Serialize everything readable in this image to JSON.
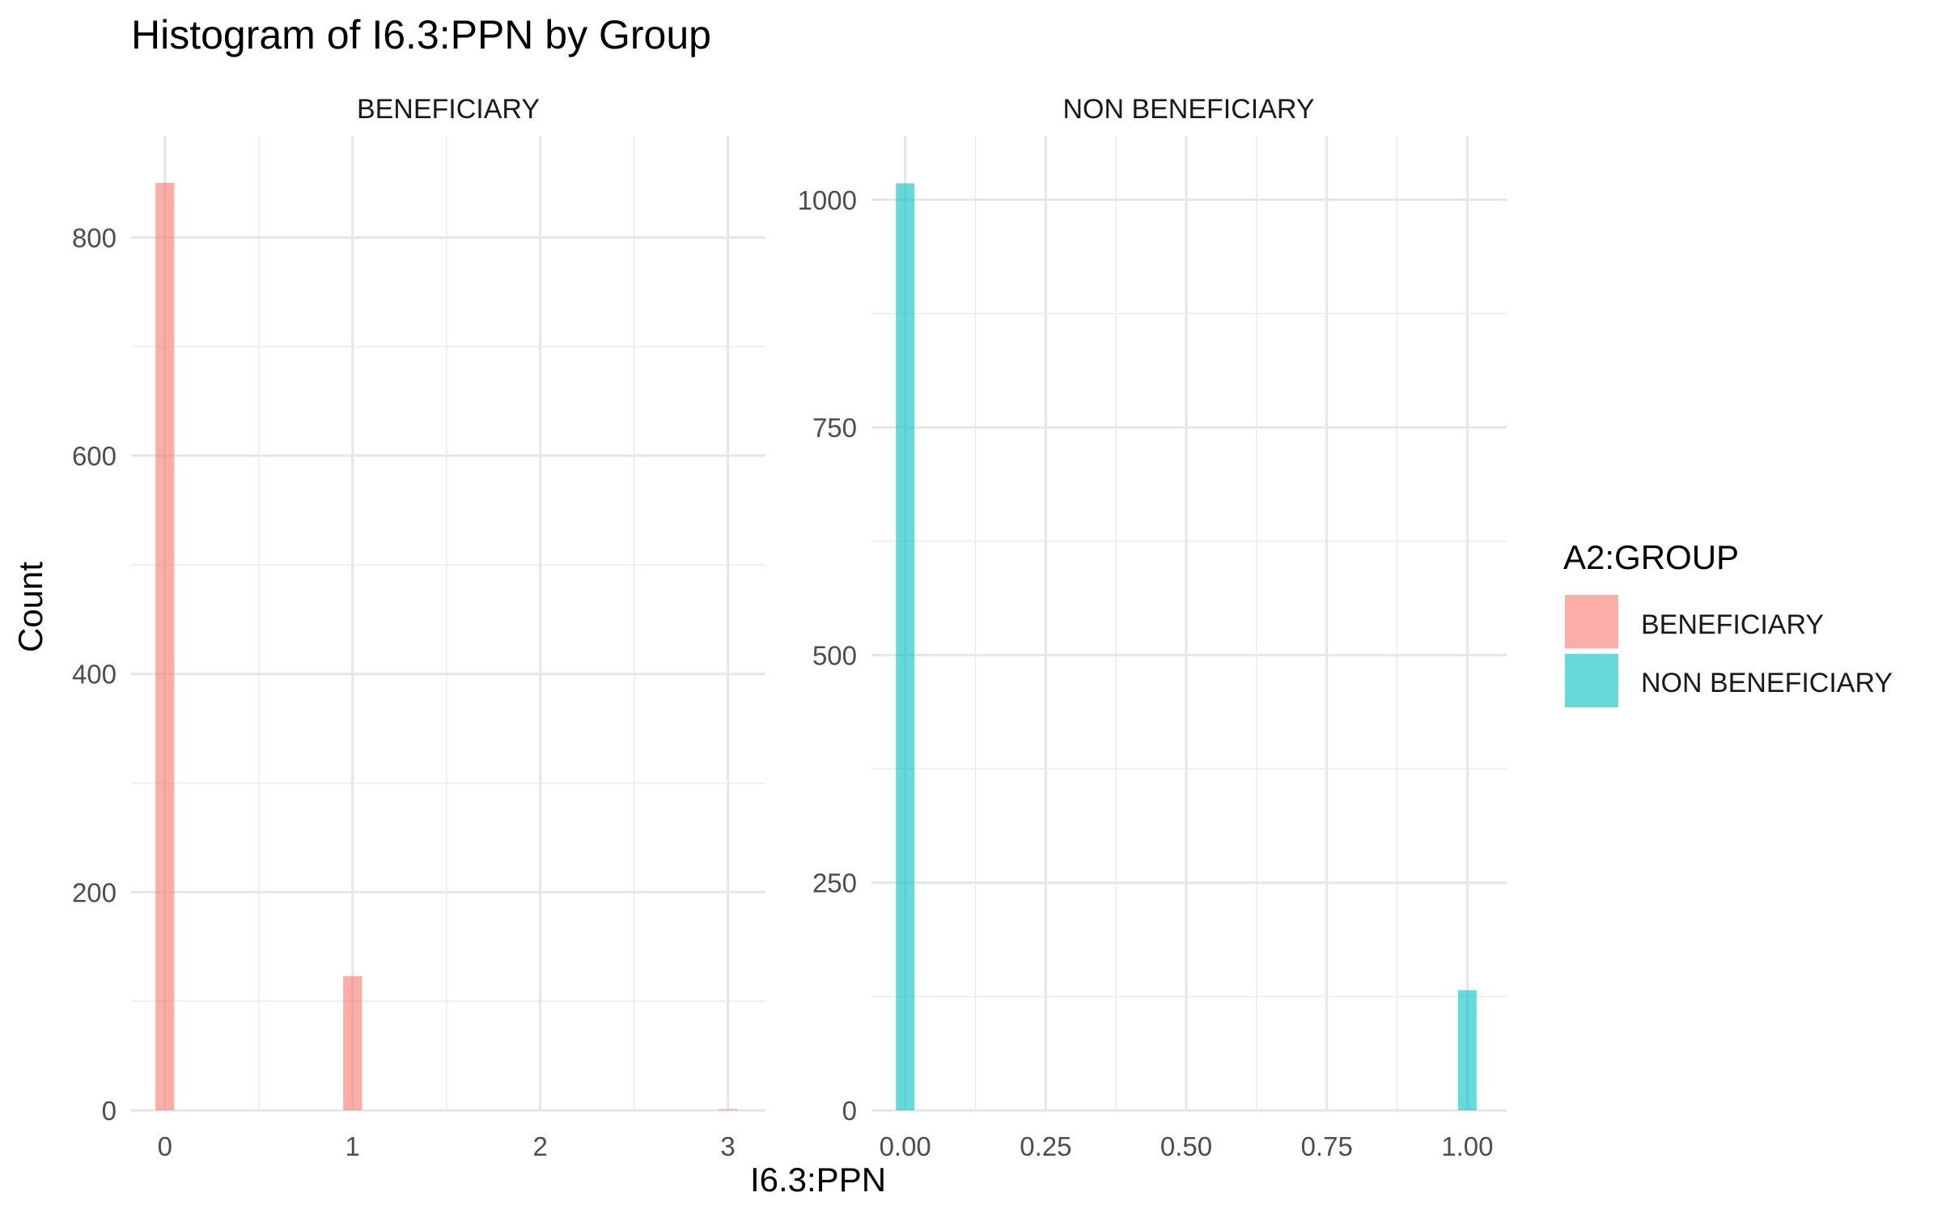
{
  "chart_data": {
    "type": "bar",
    "title": "Histogram of I6.3:PPN by Group",
    "xlabel": "I6.3:PPN",
    "ylabel": "Count",
    "grid": true,
    "legend": {
      "title": "A2:GROUP",
      "position": "right",
      "entries": [
        {
          "label": "BENEFICIARY",
          "color": "#F8766D"
        },
        {
          "label": "NON BENEFICIARY",
          "color": "#00BFC4"
        }
      ]
    },
    "facets": [
      {
        "strip_label": "BENEFICIARY",
        "color": "#F8766D",
        "xlim": [
          -0.18,
          3.2
        ],
        "ylim": [
          0,
          893
        ],
        "x_ticks": [
          0,
          1,
          2,
          3
        ],
        "x_tick_labels": [
          "0",
          "1",
          "2",
          "3"
        ],
        "y_ticks": [
          0,
          200,
          400,
          600,
          800
        ],
        "y_tick_labels": [
          "0",
          "200",
          "400",
          "600",
          "800"
        ],
        "bin_width": 0.1,
        "bins": [
          {
            "x": 0,
            "count": 850
          },
          {
            "x": 1,
            "count": 123
          },
          {
            "x": 3,
            "count": 1
          }
        ]
      },
      {
        "strip_label": "NON BENEFICIARY",
        "color": "#00BFC4",
        "xlim": [
          -0.06,
          1.07
        ],
        "ylim": [
          0,
          1070
        ],
        "x_ticks": [
          0,
          0.25,
          0.5,
          0.75,
          1
        ],
        "x_tick_labels": [
          "0.00",
          "0.25",
          "0.50",
          "0.75",
          "1.00"
        ],
        "y_ticks": [
          0,
          250,
          500,
          750,
          1000
        ],
        "y_tick_labels": [
          "0",
          "250",
          "500",
          "750",
          "1000"
        ],
        "bin_width": 0.033,
        "bins": [
          {
            "x": 0,
            "count": 1018
          },
          {
            "x": 1,
            "count": 132
          }
        ]
      }
    ]
  }
}
